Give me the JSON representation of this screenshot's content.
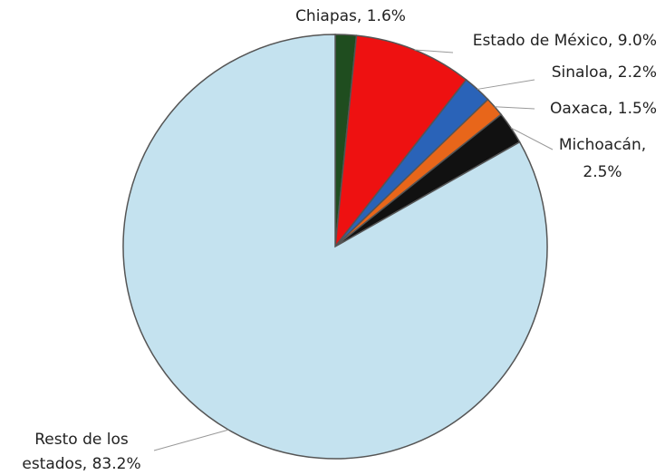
{
  "chart_data": {
    "type": "pie",
    "values": [
      1.6,
      9.0,
      2.2,
      1.5,
      2.5,
      83.2
    ],
    "value_labels": [
      [
        "Chiapas, 1.6%"
      ],
      [
        "Estado de México, 9.0%"
      ],
      [
        "Sinaloa, 2.2%"
      ],
      [
        "Oaxaca, 1.5%"
      ],
      [
        "Michoacán,",
        "2.5%"
      ],
      [
        "Resto de los",
        "estados, 83.2%"
      ]
    ],
    "colors": [
      "#1f4d1f",
      "#ee1111",
      "#2a63b8",
      "#e8661a",
      "#111111",
      "#c4e2ef"
    ]
  }
}
